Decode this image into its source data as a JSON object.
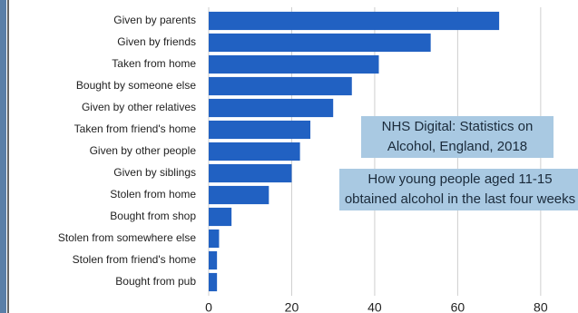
{
  "chart_data": {
    "type": "hbar",
    "categories": [
      "Given by parents",
      "Given by friends",
      "Taken from home",
      "Bought by someone else",
      "Given by other relatives",
      "Taken from friend's home",
      "Given by other people",
      "Given by siblings",
      "Stolen from home",
      "Bought from shop",
      "Stolen from somewhere else",
      "Stolen from friend's home",
      "Bought from pub"
    ],
    "values": [
      70,
      53.5,
      41,
      34.5,
      30,
      24.5,
      22,
      20,
      14.5,
      5.5,
      2.5,
      2,
      2
    ],
    "color": "#2161c2",
    "xlim": [
      0,
      89
    ],
    "xticks": [
      0,
      20,
      40,
      60,
      80
    ],
    "grid": true,
    "annotations": [
      "NHS Digital: Statistics on Alcohol, England, 2018",
      "How young people aged 11-15 obtained alcohol in the last four weeks"
    ]
  }
}
